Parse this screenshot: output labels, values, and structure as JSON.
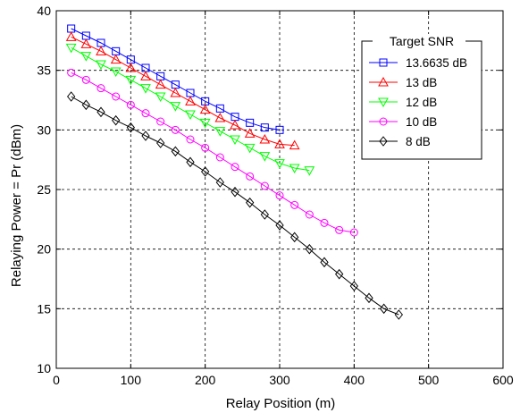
{
  "chart_data": {
    "type": "line",
    "title": "",
    "xlabel": "Relay Position (m)",
    "ylabel": "Relaying Power = Pr (dBm)",
    "xlim": [
      0,
      600
    ],
    "ylim": [
      10,
      40
    ],
    "xticks": [
      "0",
      "100",
      "200",
      "300",
      "400",
      "500",
      "600"
    ],
    "yticks": [
      "10",
      "15",
      "20",
      "25",
      "30",
      "35",
      "40"
    ],
    "grid": true,
    "legend_title": "Target SNR",
    "legend_position": "top-right",
    "series": [
      {
        "name": "13.6635 dB",
        "color": "#0000ff",
        "marker": "square",
        "x": [
          20,
          40,
          60,
          80,
          100,
          120,
          140,
          160,
          180,
          200,
          220,
          240,
          260,
          280,
          300
        ],
        "y": [
          38.5,
          37.9,
          37.3,
          36.6,
          35.9,
          35.2,
          34.5,
          33.8,
          33.1,
          32.4,
          31.8,
          31.1,
          30.6,
          30.2,
          30.0
        ]
      },
      {
        "name": "13 dB",
        "color": "#ff0000",
        "marker": "triangle-up",
        "x": [
          20,
          40,
          60,
          80,
          100,
          120,
          140,
          160,
          180,
          200,
          220,
          240,
          260,
          280,
          300,
          320
        ],
        "y": [
          37.8,
          37.2,
          36.6,
          35.9,
          35.2,
          34.5,
          33.8,
          33.1,
          32.4,
          31.7,
          31.0,
          30.4,
          29.7,
          29.2,
          28.8,
          28.7
        ]
      },
      {
        "name": "12 dB",
        "color": "#00ff00",
        "marker": "triangle-down",
        "x": [
          20,
          40,
          60,
          80,
          100,
          120,
          140,
          160,
          180,
          200,
          220,
          240,
          260,
          280,
          300,
          320,
          340
        ],
        "y": [
          36.9,
          36.2,
          35.5,
          34.9,
          34.2,
          33.5,
          32.8,
          32.0,
          31.3,
          30.6,
          29.9,
          29.2,
          28.5,
          27.8,
          27.2,
          26.8,
          26.6
        ]
      },
      {
        "name": "10 dB",
        "color": "#ff00ff",
        "marker": "circle",
        "x": [
          20,
          40,
          60,
          80,
          100,
          120,
          140,
          160,
          180,
          200,
          220,
          240,
          260,
          280,
          300,
          320,
          340,
          360,
          380,
          400
        ],
        "y": [
          34.8,
          34.2,
          33.5,
          32.8,
          32.1,
          31.4,
          30.7,
          30.0,
          29.2,
          28.5,
          27.7,
          26.9,
          26.1,
          25.3,
          24.5,
          23.7,
          22.9,
          22.2,
          21.6,
          21.4
        ]
      },
      {
        "name": "8 dB",
        "color": "#000000",
        "marker": "diamond",
        "x": [
          20,
          40,
          60,
          80,
          100,
          120,
          140,
          160,
          180,
          200,
          220,
          240,
          260,
          280,
          300,
          320,
          340,
          360,
          380,
          400,
          420,
          440,
          460
        ],
        "y": [
          32.8,
          32.1,
          31.5,
          30.8,
          30.2,
          29.5,
          28.9,
          28.2,
          27.3,
          26.5,
          25.6,
          24.8,
          23.9,
          22.9,
          22.0,
          21.0,
          20.0,
          18.9,
          17.9,
          16.9,
          15.9,
          15.0,
          14.5
        ]
      }
    ]
  }
}
